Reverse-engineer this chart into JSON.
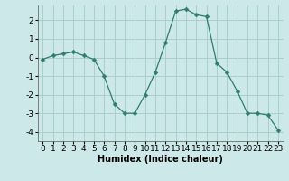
{
  "x": [
    0,
    1,
    2,
    3,
    4,
    5,
    6,
    7,
    8,
    9,
    10,
    11,
    12,
    13,
    14,
    15,
    16,
    17,
    18,
    19,
    20,
    21,
    22,
    23
  ],
  "y": [
    -0.1,
    0.1,
    0.2,
    0.3,
    0.1,
    -0.1,
    -1.0,
    -2.5,
    -3.0,
    -3.0,
    -2.0,
    -0.8,
    0.8,
    2.5,
    2.6,
    2.3,
    2.2,
    -0.3,
    -0.8,
    -1.8,
    -3.0,
    -3.0,
    -3.1,
    -3.9
  ],
  "line_color": "#2e7d6e",
  "marker": "D",
  "marker_size": 2.5,
  "bg_color": "#cde8e8",
  "grid_color": "#aacece",
  "xlabel": "Humidex (Indice chaleur)",
  "xlim": [
    -0.5,
    23.5
  ],
  "ylim": [
    -4.5,
    2.8
  ],
  "yticks": [
    -4,
    -3,
    -2,
    -1,
    0,
    1,
    2
  ],
  "xticks": [
    0,
    1,
    2,
    3,
    4,
    5,
    6,
    7,
    8,
    9,
    10,
    11,
    12,
    13,
    14,
    15,
    16,
    17,
    18,
    19,
    20,
    21,
    22,
    23
  ],
  "xlabel_fontsize": 7,
  "tick_fontsize": 6.5
}
